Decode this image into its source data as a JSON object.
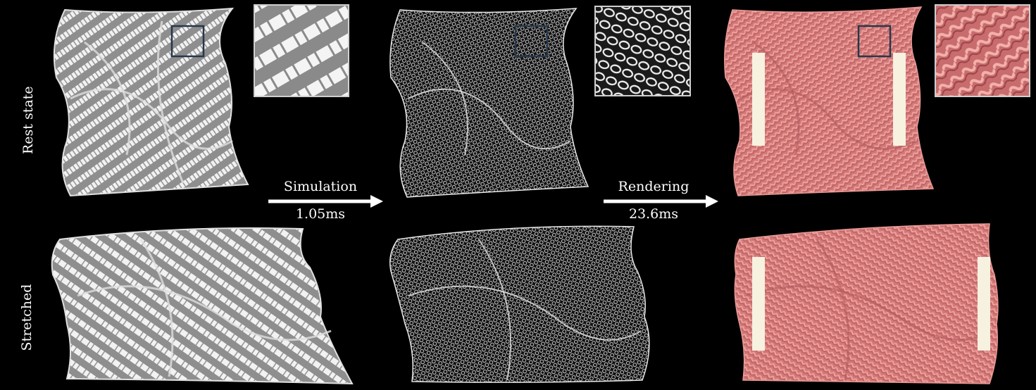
{
  "rows": {
    "rest_label": "Rest state",
    "stretched_label": "Stretched"
  },
  "steps": {
    "simulation": {
      "label": "Simulation",
      "time": "1.05ms"
    },
    "rendering": {
      "label": "Rendering",
      "time": "23.6ms"
    }
  },
  "colors": {
    "background": "#000000",
    "pattern_fabric": "#9a9a9a",
    "pattern_stripe": "#eeeeee",
    "wire_mesh": "#e8e8e8",
    "rendered_yarn": "#d97c7c",
    "clamp_bar": "#f7f1e0",
    "zoom_box": "#26374a"
  }
}
